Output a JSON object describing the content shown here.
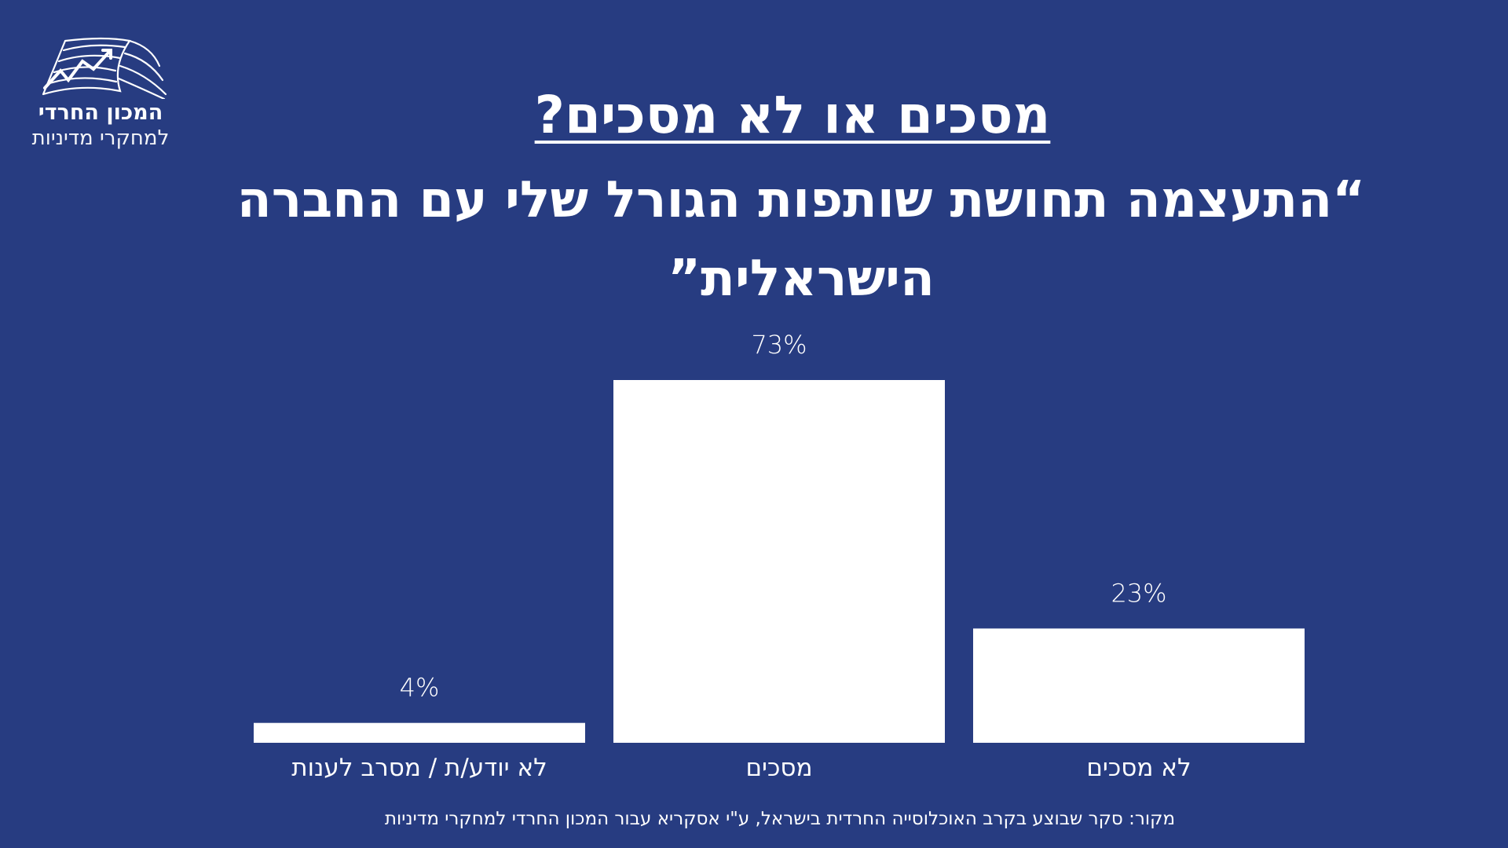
{
  "logo": {
    "name_bold": "המכון החרדי",
    "name_light": "למחקרי מדיניות"
  },
  "title": "מסכים או לא מסכים?",
  "subtitle": "“התעצמה תחושת שותפות הגורל שלי עם החברה הישראלית”",
  "source": "מקור: סקר שבוצע בקרב האוכלוסייה החרדית בישראל, ע\"י אסקריא עבור המכון החרדי למחקרי מדיניות",
  "colors": {
    "background": "#273c81",
    "bars": "#ffffff",
    "text": "#ffffff"
  },
  "chart_data": {
    "type": "bar",
    "categories": [
      "לא יודע/ת / מסרב לענות",
      "מסכים",
      "לא מסכים"
    ],
    "values": [
      4,
      73,
      23
    ],
    "value_labels": [
      "4%",
      "73%",
      "23%"
    ],
    "ylim": [
      0,
      73
    ],
    "grid": false,
    "legend": "none"
  }
}
